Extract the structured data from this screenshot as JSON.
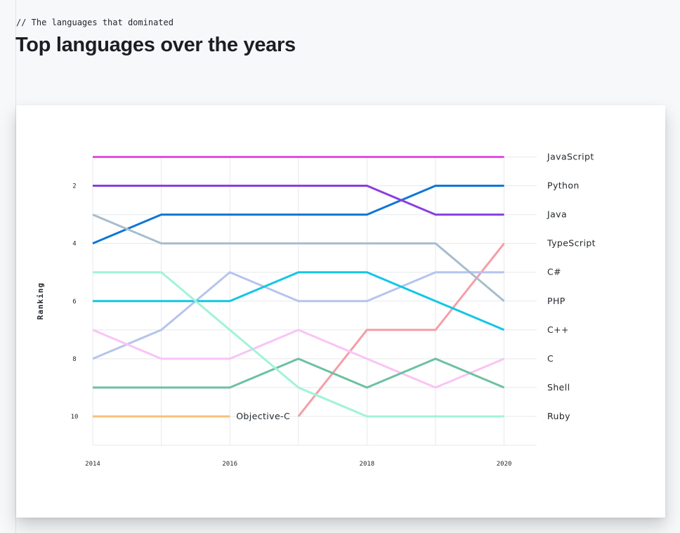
{
  "header": {
    "eyebrow": "// The languages that dominated",
    "title": "Top languages over the years"
  },
  "chart_data": {
    "type": "line",
    "title": "",
    "xlabel": "",
    "ylabel": "Ranking",
    "x": [
      2014,
      2015,
      2016,
      2017,
      2018,
      2019,
      2020
    ],
    "x_ticks": [
      "2014",
      "2016",
      "2018",
      "2020"
    ],
    "y_ticks": [
      "2",
      "4",
      "6",
      "8",
      "10"
    ],
    "ylim": [
      11,
      1
    ],
    "y_inverted": true,
    "grid": true,
    "legend": "end-of-line labels on the right",
    "series": [
      {
        "name": "JavaScript",
        "color": "#e34fde",
        "values": [
          1,
          1,
          1,
          1,
          1,
          1,
          1
        ]
      },
      {
        "name": "Python",
        "color": "#0e76d6",
        "values": [
          4,
          3,
          3,
          3,
          3,
          2,
          2
        ]
      },
      {
        "name": "Java",
        "color": "#8a3ee0",
        "values": [
          2,
          2,
          2,
          2,
          2,
          3,
          3
        ]
      },
      {
        "name": "TypeScript",
        "color": "#f59ea6",
        "values": [
          null,
          null,
          null,
          10,
          7,
          7,
          4
        ]
      },
      {
        "name": "C#",
        "color": "#b6c4ee",
        "values": [
          8,
          7,
          5,
          6,
          6,
          5,
          5
        ]
      },
      {
        "name": "PHP",
        "color": "#a7bdcf",
        "values": [
          3,
          4,
          4,
          4,
          4,
          4,
          6
        ]
      },
      {
        "name": "C++",
        "color": "#14c6e3",
        "values": [
          6,
          6,
          6,
          5,
          5,
          6,
          7
        ]
      },
      {
        "name": "C",
        "color": "#f9c4f5",
        "values": [
          7,
          8,
          8,
          7,
          8,
          9,
          8
        ]
      },
      {
        "name": "Shell",
        "color": "#6cc1a0",
        "values": [
          9,
          9,
          9,
          8,
          9,
          8,
          9
        ]
      },
      {
        "name": "Ruby",
        "color": "#a1f4d6",
        "values": [
          5,
          5,
          7,
          9,
          10,
          10,
          10
        ]
      },
      {
        "name": "Objective-C",
        "color": "#f7c07a",
        "values": [
          10,
          10,
          10,
          null,
          null,
          null,
          null
        ],
        "label_inline": true
      }
    ]
  }
}
